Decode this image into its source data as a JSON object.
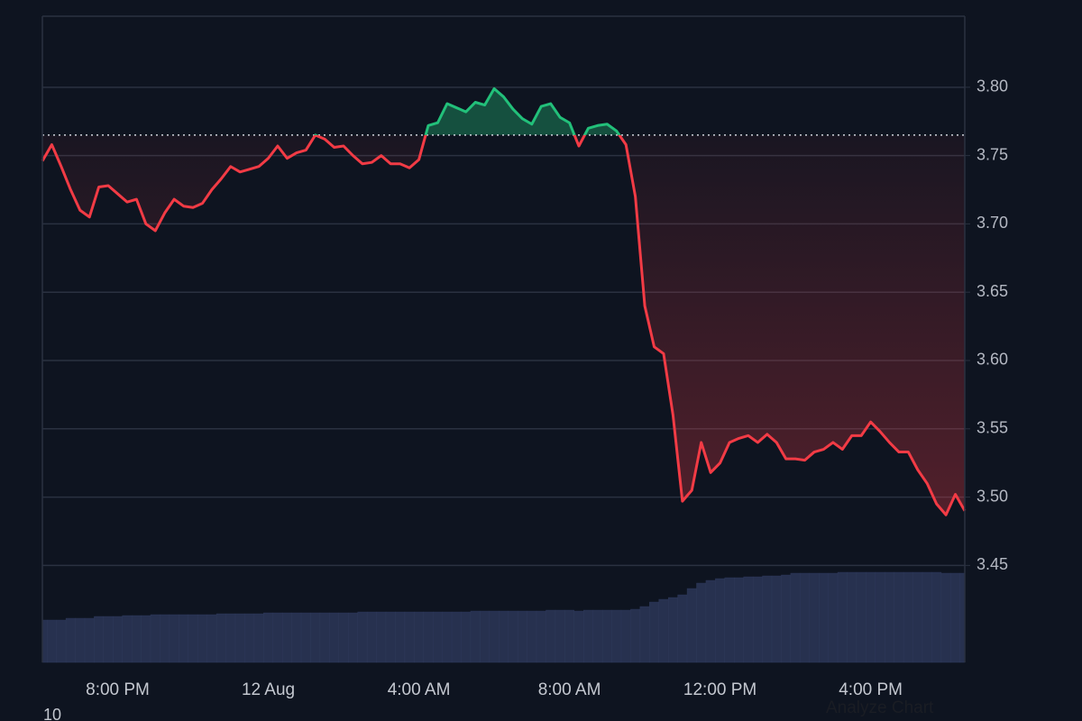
{
  "chart_data": {
    "type": "line",
    "categories": [
      null,
      null,
      null,
      null,
      null,
      null,
      null,
      null,
      "8:00 PM",
      null,
      null,
      null,
      null,
      null,
      null,
      null,
      null,
      null,
      null,
      null,
      null,
      null,
      null,
      null,
      "12 Aug",
      null,
      null,
      null,
      null,
      null,
      null,
      null,
      null,
      null,
      null,
      null,
      null,
      null,
      null,
      null,
      "4:00 AM",
      null,
      null,
      null,
      null,
      null,
      null,
      null,
      null,
      null,
      null,
      null,
      null,
      null,
      null,
      null,
      "8:00 AM",
      null,
      null,
      null,
      null,
      null,
      null,
      null,
      null,
      null,
      null,
      null,
      null,
      null,
      null,
      null,
      "12:00 PM",
      null,
      null,
      null,
      null,
      null,
      null,
      null,
      null,
      null,
      null,
      null,
      null,
      null,
      null,
      null,
      "4:00 PM",
      null,
      null,
      null,
      null,
      null,
      null,
      null,
      null,
      null,
      null
    ],
    "values": [
      3.746,
      3.758,
      3.742,
      3.725,
      3.71,
      3.705,
      3.727,
      3.728,
      3.722,
      3.716,
      3.718,
      3.7,
      3.695,
      3.708,
      3.718,
      3.713,
      3.712,
      3.715,
      3.725,
      3.733,
      3.742,
      3.738,
      3.74,
      3.742,
      3.748,
      3.757,
      3.748,
      3.752,
      3.754,
      3.765,
      3.762,
      3.756,
      3.757,
      3.75,
      3.744,
      3.745,
      3.75,
      3.744,
      3.744,
      3.741,
      3.747,
      3.772,
      3.774,
      3.788,
      3.785,
      3.782,
      3.789,
      3.787,
      3.799,
      3.793,
      3.784,
      3.777,
      3.773,
      3.786,
      3.788,
      3.778,
      3.774,
      3.757,
      3.77,
      3.772,
      3.773,
      3.768,
      3.758,
      3.72,
      3.64,
      3.61,
      3.605,
      3.56,
      3.497,
      3.505,
      3.54,
      3.518,
      3.525,
      3.54,
      3.543,
      3.545,
      3.54,
      3.546,
      3.54,
      3.528,
      3.528,
      3.527,
      3.533,
      3.535,
      3.54,
      3.535,
      3.545,
      3.545,
      3.555,
      3.548,
      3.54,
      3.533,
      3.533,
      3.52,
      3.51,
      3.495,
      3.487,
      3.502,
      3.49
    ],
    "baseline": 3.765,
    "up_color": "#22c07a",
    "down_color": "#f23b45",
    "ylim": [
      3.379,
      3.852
    ],
    "yticks": [
      3.45,
      {
        "value": 3.5,
        "label": "3.50"
      },
      3.55,
      {
        "value": 3.6,
        "label": "3.60"
      },
      3.65,
      {
        "value": 3.7,
        "label": "3.70"
      },
      3.75,
      {
        "value": 3.8,
        "label": "3.80"
      }
    ],
    "grid": true,
    "volume": {
      "color": "#27314f",
      "ylim": [
        0,
        200
      ],
      "values": [
        47,
        47,
        47,
        49,
        49,
        49,
        51,
        51,
        51,
        52,
        52,
        52,
        53,
        53,
        53,
        53,
        53,
        53,
        53,
        54,
        54,
        54,
        54,
        54,
        55,
        55,
        55,
        55,
        55,
        55,
        55,
        55,
        55,
        55,
        56,
        56,
        56,
        56,
        56,
        56,
        56,
        56,
        56,
        56,
        56,
        56,
        57,
        57,
        57,
        57,
        57,
        57,
        57,
        57,
        58,
        58,
        58,
        57,
        58,
        58,
        58,
        58,
        58,
        59,
        62,
        67,
        70,
        72,
        75,
        82,
        88,
        91,
        93,
        94,
        94,
        95,
        95,
        96,
        96,
        97,
        99,
        99,
        99,
        99,
        99,
        100,
        100,
        100,
        100,
        100,
        100,
        100,
        100,
        100,
        100,
        100,
        99,
        99,
        99
      ]
    },
    "volume_axis_label": "10",
    "analyze_button": "Analyze Chart"
  }
}
